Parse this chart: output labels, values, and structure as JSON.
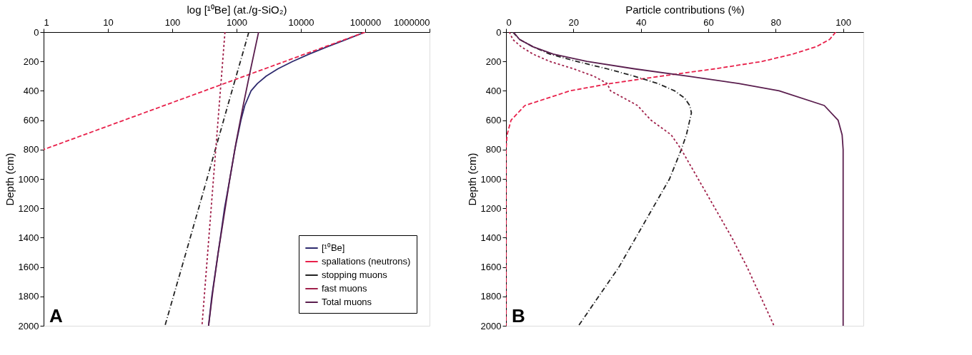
{
  "chart_data": [
    {
      "type": "line",
      "xlabel": "log [¹⁰Be] (at./g-SiO₂)",
      "ylabel": "Depth (cm)",
      "log": "x",
      "xlim": [
        1,
        1000000
      ],
      "xticks": [
        1,
        10,
        100,
        1000,
        10000,
        100000,
        1000000
      ],
      "ylim": [
        2000,
        0
      ],
      "yticks": [
        0,
        200,
        400,
        600,
        800,
        1000,
        1200,
        1400,
        1600,
        1800,
        2000
      ],
      "grid": false,
      "legend": "bottom right",
      "annotations": [
        "A"
      ],
      "series": [
        {
          "name": "[¹⁰Be]",
          "color": "#2e2a6e",
          "line_style": "solid",
          "x": [
            100000,
            50800,
            25700,
            13450,
            7420,
            4400,
            2890,
            2110,
            1680,
            1342,
            1170,
            940,
            785,
            650,
            560,
            480,
            412,
            367
          ],
          "values": [
            0,
            50,
            100,
            150,
            200,
            250,
            300,
            350,
            400,
            500,
            600,
            800,
            1000,
            1200,
            1400,
            1600,
            1800,
            2000
          ]
        },
        {
          "name": "spallations (neutrons)",
          "color": "#e8204a",
          "line_style": "dashed",
          "x": [
            100000,
            10000,
            1000,
            100,
            10,
            1
          ],
          "values": [
            0,
            160,
            320,
            480,
            640,
            800
          ]
        },
        {
          "name": "stopping muons",
          "color": "#222222",
          "line_style": "dashdot",
          "x": [
            1550,
            730,
            347,
            164,
            77
          ],
          "values": [
            0,
            500,
            1000,
            1500,
            2000
          ]
        },
        {
          "name": "fast muons",
          "color": "#a0204a",
          "line_style": "dotted",
          "x": [
            660,
            437,
            290
          ],
          "values": [
            0,
            1000,
            2000
          ]
        },
        {
          "name": "Total muons",
          "color": "#5a1e4e",
          "line_style": "solid",
          "x": [
            2200,
            1660,
            1267,
            984,
            785,
            519,
            432,
            367
          ],
          "values": [
            0,
            250,
            500,
            750,
            1000,
            1500,
            1750,
            2000
          ]
        }
      ]
    },
    {
      "type": "line",
      "xlabel": "Particle contributions (%)",
      "ylabel": "Depth (cm)",
      "xlim": [
        0,
        106
      ],
      "xticks": [
        0,
        20,
        40,
        60,
        80,
        100
      ],
      "ylim": [
        2000,
        0
      ],
      "yticks": [
        0,
        200,
        400,
        600,
        800,
        1000,
        1200,
        1400,
        1600,
        1800,
        2000
      ],
      "grid": false,
      "legend": false,
      "annotations": [
        "B"
      ],
      "series": [
        {
          "color": "#e8204a",
          "line_style": "dashed",
          "x": [
            97.8,
            96,
            92,
            85,
            76,
            62,
            46,
            31,
            19,
            5.6,
            1.5,
            0.3,
            0,
            0
          ],
          "values": [
            0,
            50,
            100,
            150,
            200,
            250,
            300,
            350,
            400,
            500,
            600,
            700,
            800,
            2000
          ]
        },
        {
          "color": "#222222",
          "line_style": "dashdot",
          "x": [
            2,
            4,
            8,
            13,
            21,
            30,
            38,
            45,
            50,
            53,
            54.5,
            55,
            54.5,
            53.5,
            52,
            48.5,
            43.5,
            38.5,
            33.5,
            27.5,
            21.5
          ],
          "values": [
            0,
            50,
            100,
            150,
            200,
            250,
            300,
            350,
            400,
            450,
            500,
            550,
            600,
            700,
            800,
            1000,
            1200,
            1400,
            1600,
            1800,
            2000
          ]
        },
        {
          "color": "#a0204a",
          "line_style": "dotted",
          "x": [
            1,
            2,
            4.5,
            8,
            13,
            20,
            26,
            30,
            31,
            39,
            43,
            49,
            52,
            57,
            62,
            67,
            71.5,
            75.5,
            79.5
          ],
          "values": [
            0,
            50,
            100,
            150,
            200,
            250,
            300,
            350,
            400,
            500,
            600,
            700,
            800,
            1000,
            1200,
            1400,
            1600,
            1800,
            2000
          ]
        },
        {
          "color": "#5a1e4e",
          "line_style": "solid",
          "x": [
            2.2,
            4,
            8,
            14,
            24,
            38,
            54,
            69,
            81,
            94.4,
            98.5,
            99.7,
            100,
            100
          ],
          "values": [
            0,
            50,
            100,
            150,
            200,
            250,
            300,
            350,
            400,
            500,
            600,
            700,
            800,
            2000
          ]
        }
      ]
    }
  ]
}
